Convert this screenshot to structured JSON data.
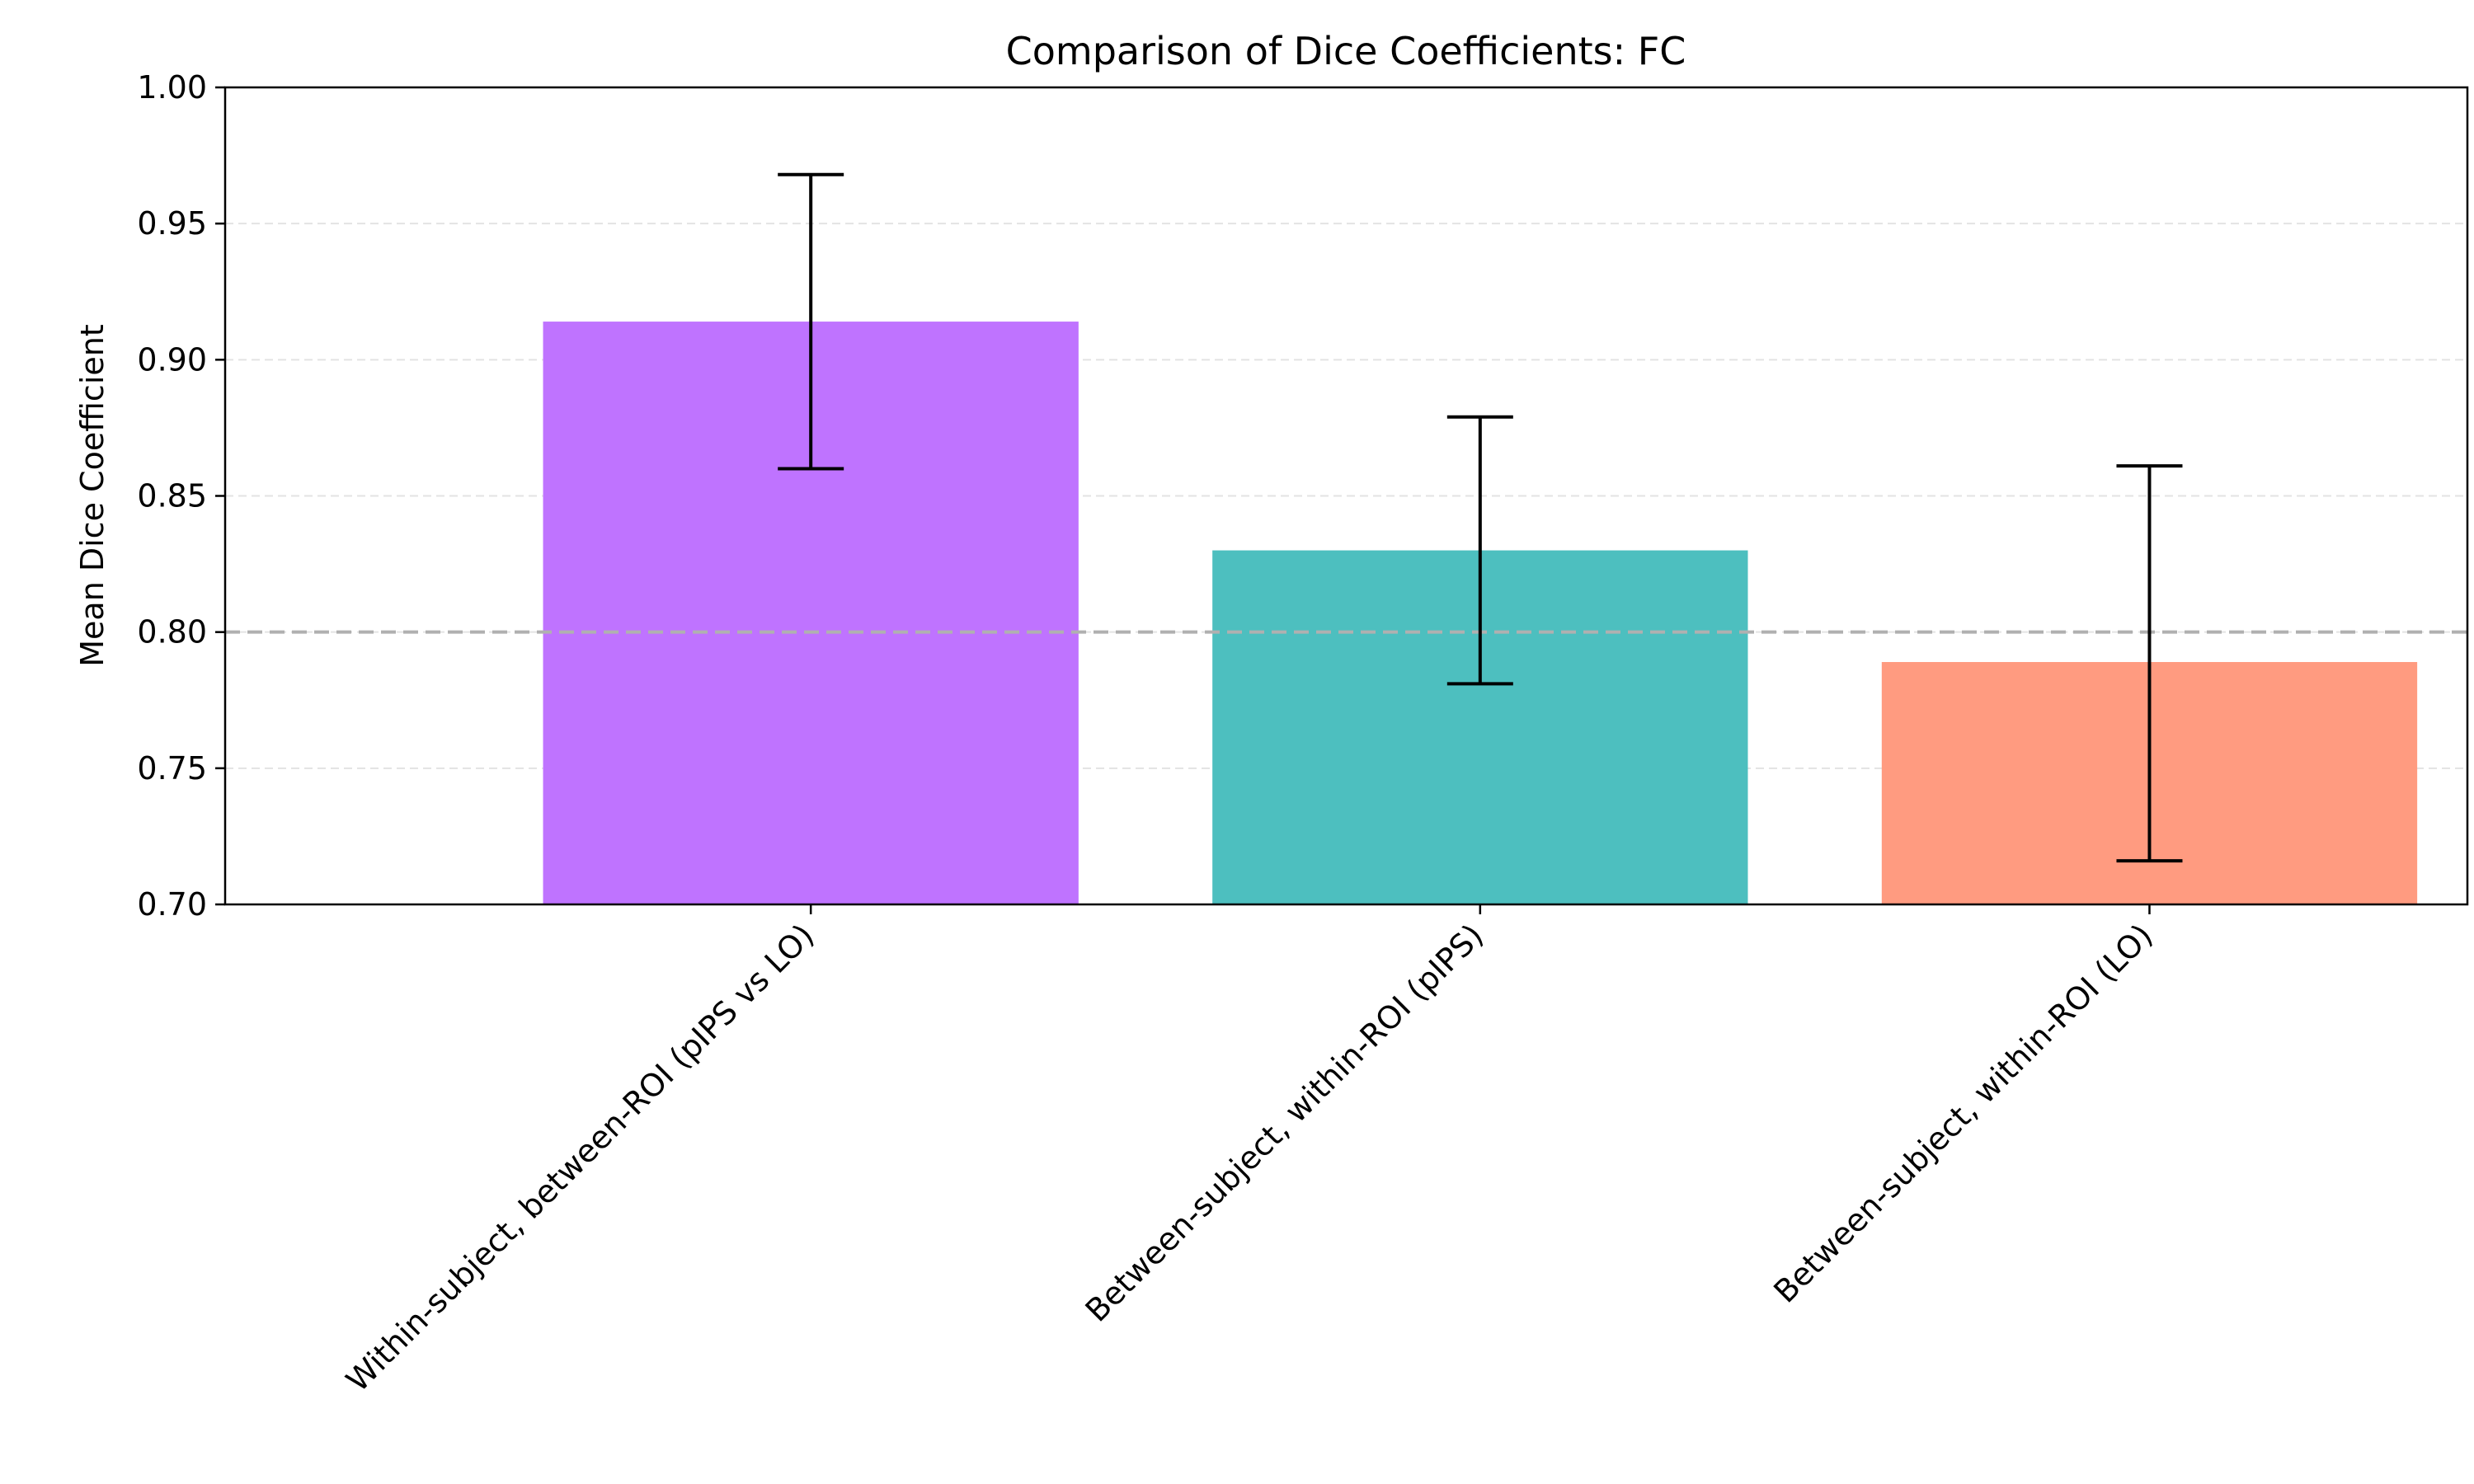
{
  "chart_data": {
    "type": "bar",
    "title": "Comparison of Dice Coefficients: FC",
    "xlabel": "",
    "ylabel": "Mean Dice Coefficient",
    "ylim": [
      0.7,
      1.0
    ],
    "yticks": [
      0.7,
      0.75,
      0.8,
      0.85,
      0.9,
      0.95,
      1.0
    ],
    "ytick_labels": [
      "0.70",
      "0.75",
      "0.80",
      "0.85",
      "0.90",
      "0.95",
      "1.00"
    ],
    "categories": [
      "Within-subject, between-ROI (pIPS vs LO)",
      "Between-subject, within-ROI (pIPS)",
      "Between-subject, within-ROI (LO)"
    ],
    "values": [
      0.914,
      0.83,
      0.789
    ],
    "error_low": [
      0.86,
      0.781,
      0.716
    ],
    "error_high": [
      0.968,
      0.879,
      0.861
    ],
    "colors": [
      "#bf73ff",
      "#4dbfbf",
      "#ff9b80"
    ],
    "reference_line": 0.8,
    "reference_line_color": "#b0b0b0",
    "grid": {
      "axis": "y",
      "style": "dashed",
      "color": "#e3e3e3"
    }
  }
}
